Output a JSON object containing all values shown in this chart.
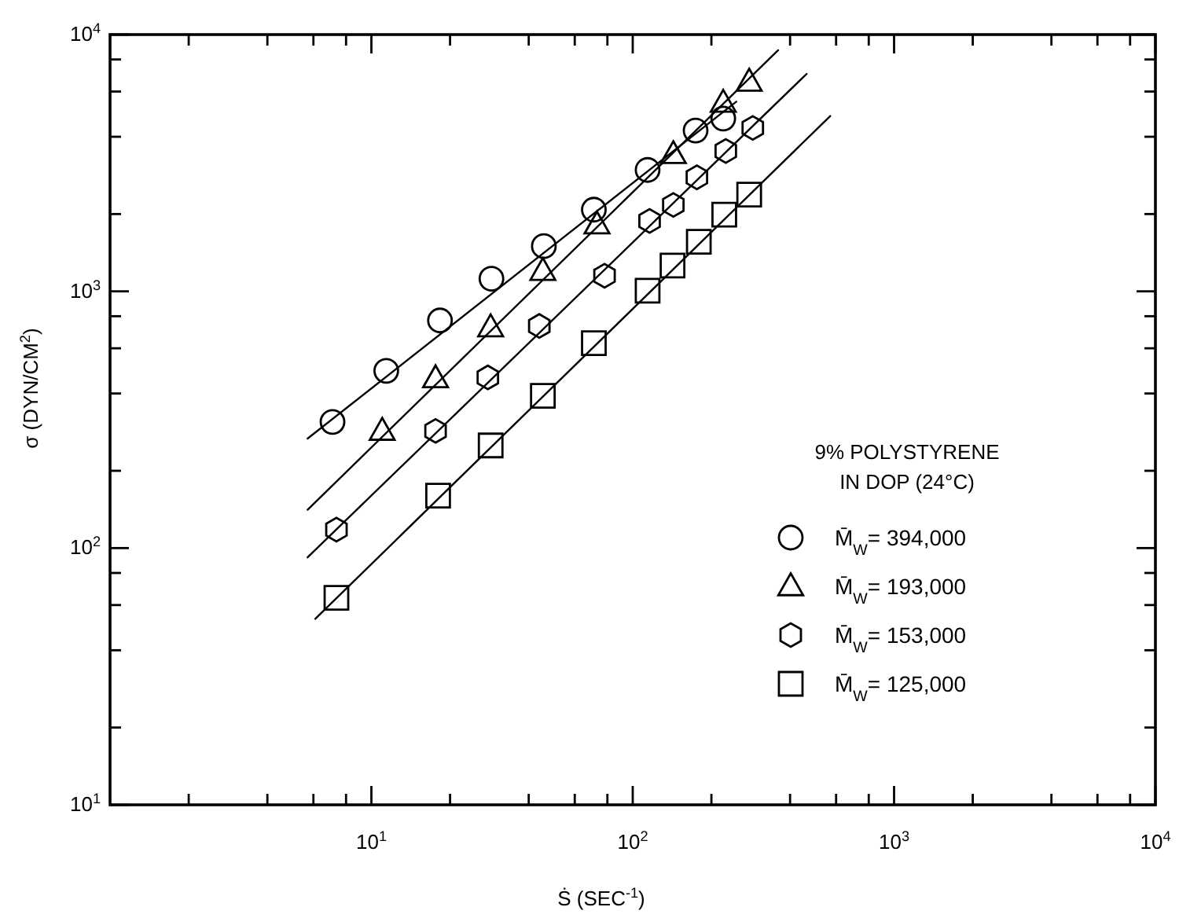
{
  "chart_data": {
    "type": "scatter",
    "xlabel": "Ṡ (SEC$^{-1}$)",
    "ylabel": "σ (DYN/CM$^{2}$)",
    "legend_title": "9% POLYSTYRENE\nIN DOP (24°C)",
    "legend": "right",
    "log": "xy",
    "grid": false,
    "xlim": [
      1,
      10000
    ],
    "ylim": [
      10,
      10000
    ],
    "xticks": [
      {
        "value": 2,
        "label": null
      },
      {
        "value": 4,
        "label": null
      },
      {
        "value": 6,
        "label": null
      },
      {
        "value": 8,
        "label": null
      },
      {
        "value": 10,
        "label": "10$^{1}$"
      },
      {
        "value": 20,
        "label": null
      },
      {
        "value": 40,
        "label": null
      },
      {
        "value": 60,
        "label": null
      },
      {
        "value": 80,
        "label": null
      },
      {
        "value": 100,
        "label": "10$^{2}$"
      },
      {
        "value": 200,
        "label": null
      },
      {
        "value": 400,
        "label": null
      },
      {
        "value": 600,
        "label": null
      },
      {
        "value": 800,
        "label": null
      },
      {
        "value": 1000,
        "label": "10$^{3}$"
      },
      {
        "value": 2000,
        "label": null
      },
      {
        "value": 4000,
        "label": null
      },
      {
        "value": 6000,
        "label": null
      },
      {
        "value": 8000,
        "label": null
      },
      {
        "value": 10000,
        "label": "10$^{4}$"
      }
    ],
    "yticks": [
      {
        "value": 10,
        "label": "10$^{1}$"
      },
      {
        "value": 20,
        "label": null
      },
      {
        "value": 40,
        "label": null
      },
      {
        "value": 60,
        "label": null
      },
      {
        "value": 80,
        "label": null
      },
      {
        "value": 100,
        "label": "10$^{2}$"
      },
      {
        "value": 200,
        "label": null
      },
      {
        "value": 400,
        "label": null
      },
      {
        "value": 600,
        "label": null
      },
      {
        "value": 800,
        "label": null
      },
      {
        "value": 1000,
        "label": "10$^{3}$"
      },
      {
        "value": 2000,
        "label": null
      },
      {
        "value": 4000,
        "label": null
      },
      {
        "value": 6000,
        "label": null
      },
      {
        "value": 8000,
        "label": null
      },
      {
        "value": 10000,
        "label": "10$^{4}$"
      }
    ],
    "series": [
      {
        "name": "M̄$_{W}$= 394,000",
        "color": "#000000",
        "marker": "circle",
        "x": [
          7.1,
          11.4,
          18.3,
          28.8,
          45.7,
          71,
          114,
          174,
          222
        ],
        "values": [
          310,
          490,
          770,
          1120,
          1500,
          2080,
          2970,
          4230,
          4710
        ]
      },
      {
        "name": "M̄$_{W}$= 193,000",
        "color": "#000000",
        "marker": "triangle",
        "x": [
          11,
          17.6,
          28.6,
          45.3,
          73,
          143,
          222,
          279
        ],
        "values": [
          286,
          458,
          723,
          1200,
          1820,
          3420,
          5420,
          6550
        ]
      },
      {
        "name": "M̄$_{W}$= 153,000",
        "color": "#000000",
        "x": [
          7.35,
          17.6,
          27.9,
          43.9,
          78,
          116,
          143,
          176,
          227,
          288
        ],
        "values": [
          118,
          286,
          462,
          733,
          1150,
          1880,
          2170,
          2780,
          3520,
          4330
        ]
      },
      {
        "name": "M̄$_{W}$= 125,000",
        "color": "#000000",
        "marker": "square",
        "x": [
          7.35,
          18,
          28.6,
          45.3,
          71,
          114,
          142,
          179,
          224,
          279
        ],
        "values": [
          64,
          160,
          251,
          392,
          628,
          1005,
          1260,
          1560,
          1990,
          2380
        ]
      },
      {
        "type": "line",
        "color": "#000000",
        "marker": "none",
        "line_style": "solid",
        "x": [
          5.7,
          249
        ],
        "values": [
          267,
          5480
        ]
      },
      {
        "type": "line",
        "color": "#000000",
        "marker": "none",
        "line_style": "solid",
        "x": [
          5.7,
          360
        ],
        "values": [
          141,
          8690
        ]
      },
      {
        "type": "line",
        "color": "#000000",
        "marker": "none",
        "line_style": "solid",
        "x": [
          5.7,
          463
        ],
        "values": [
          92,
          7030
        ]
      },
      {
        "type": "line",
        "color": "#000000",
        "marker": "none",
        "line_style": "solid",
        "x": [
          6.1,
          570
        ],
        "values": [
          53,
          4820
        ]
      }
    ]
  }
}
